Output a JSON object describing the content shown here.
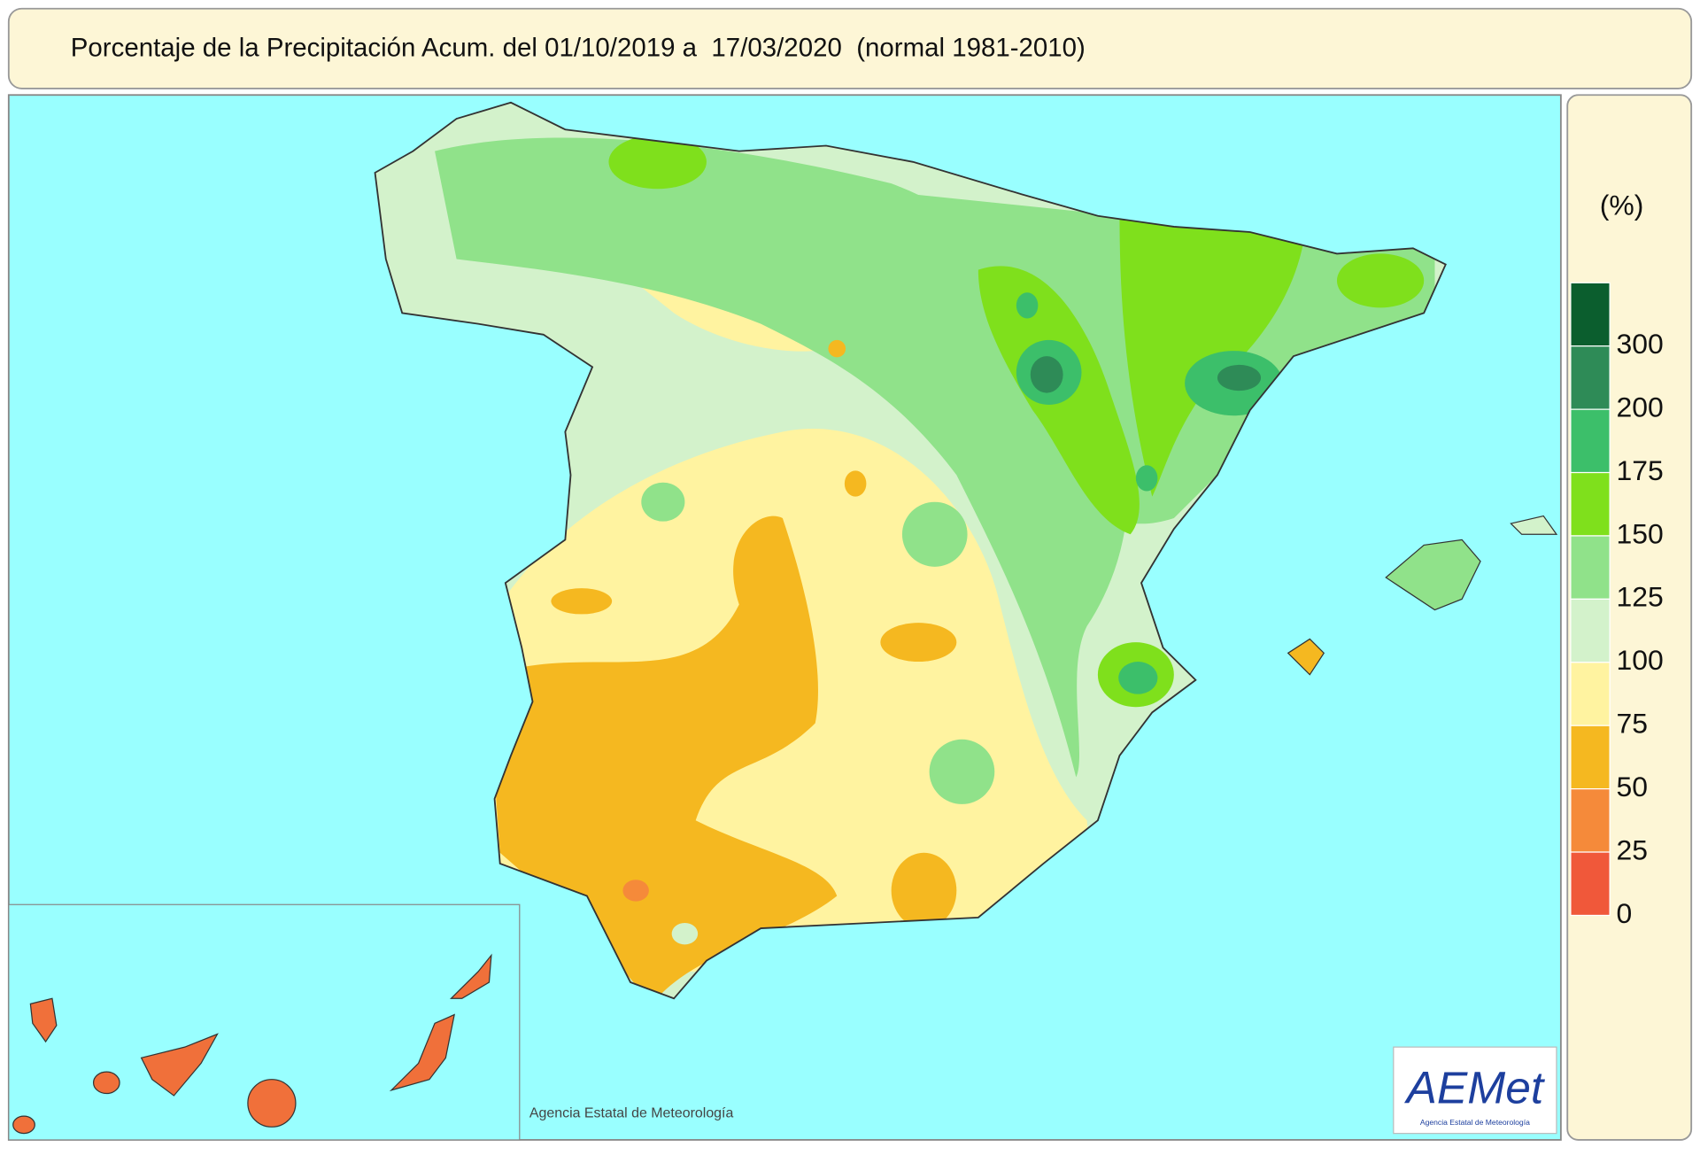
{
  "header": {
    "title": "Porcentaje de la Precipitación Acum. del 01/10/2019 a  17/03/2020  (normal 1981-2010)"
  },
  "legend": {
    "unit": "(%)",
    "colors": [
      "#0b5e2e",
      "#2e8b57",
      "#3cbf6a",
      "#7fe01c",
      "#90e28a",
      "#d3f2cb",
      "#fff3a0",
      "#f5b820",
      "#f58a3a",
      "#f0583a"
    ],
    "labels": [
      "300",
      "200",
      "175",
      "150",
      "125",
      "100",
      "75",
      "50",
      "25",
      "0"
    ]
  },
  "credit": "Agencia Estatal de Meteorología",
  "logo": {
    "text": "AEMet",
    "subtitle": "Agencia Estatal de Meteorología"
  }
}
